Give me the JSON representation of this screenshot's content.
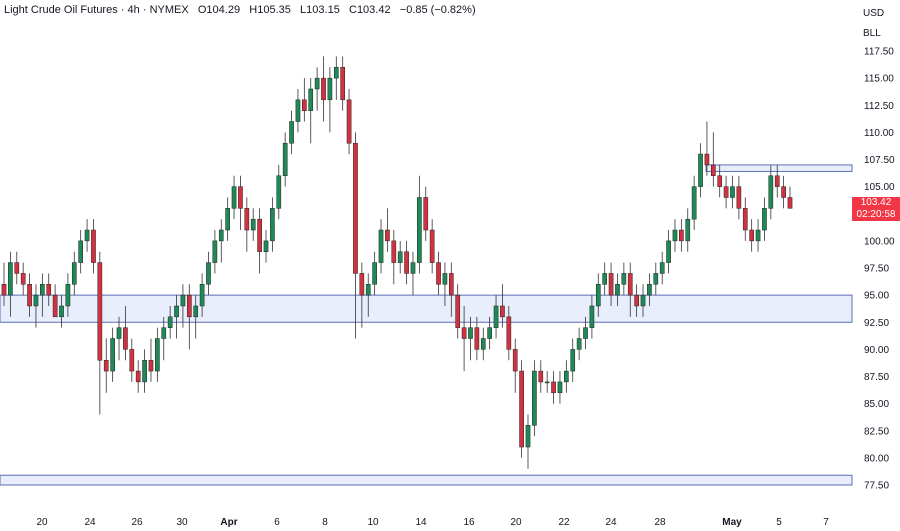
{
  "header": {
    "symbol": "Light Crude Oil Futures",
    "interval": "4h",
    "exchange": "NYMEX",
    "open": "O104.29",
    "high": "H105.35",
    "low": "L103.15",
    "close": "C103.42",
    "change": "−0.85 (−0.82%)"
  },
  "axis": {
    "currency": "USD",
    "unit": "BLL"
  },
  "last_price": {
    "value": "103.42",
    "countdown": "02:20:58"
  },
  "colors": {
    "up": "#26a69a",
    "down": "#ef5350",
    "zone_fill": "#e8eefc",
    "zone_line": "#5a6fb5",
    "up_body": "#1e8a57",
    "down_body": "#d2323f"
  },
  "chart_data": {
    "type": "candlestick",
    "ylim": [
      76.5,
      118.5
    ],
    "y_ticks": [
      "117.50",
      "115.00",
      "112.50",
      "110.00",
      "107.50",
      "105.00",
      "102.50",
      "100.00",
      "97.50",
      "95.00",
      "92.50",
      "90.00",
      "87.50",
      "85.00",
      "82.50",
      "80.00",
      "77.50"
    ],
    "x_ticks": [
      {
        "label": "20",
        "bold": false
      },
      {
        "label": "24",
        "bold": false
      },
      {
        "label": "26",
        "bold": false
      },
      {
        "label": "30",
        "bold": false
      },
      {
        "label": "Apr",
        "bold": true
      },
      {
        "label": "6",
        "bold": false
      },
      {
        "label": "8",
        "bold": false
      },
      {
        "label": "10",
        "bold": false
      },
      {
        "label": "14",
        "bold": false
      },
      {
        "label": "16",
        "bold": false
      },
      {
        "label": "20",
        "bold": false
      },
      {
        "label": "22",
        "bold": false
      },
      {
        "label": "24",
        "bold": false
      },
      {
        "label": "28",
        "bold": false
      },
      {
        "label": "May",
        "bold": true
      },
      {
        "label": "5",
        "bold": false
      },
      {
        "label": "7",
        "bold": false
      }
    ],
    "zones": [
      {
        "from": 92.5,
        "to": 95.0
      },
      {
        "from": 77.5,
        "to": 78.4
      },
      {
        "from": 106.4,
        "to": 107.0
      }
    ],
    "candles": [
      [
        96,
        98,
        94,
        95
      ],
      [
        95,
        99,
        93,
        98
      ],
      [
        98,
        99,
        96,
        97
      ],
      [
        97,
        98,
        95,
        96
      ],
      [
        96,
        97,
        93,
        94
      ],
      [
        94,
        96,
        92,
        95
      ],
      [
        95,
        97,
        93,
        96
      ],
      [
        96,
        97,
        94,
        95
      ],
      [
        95,
        96,
        93,
        93
      ],
      [
        93,
        95,
        92,
        94
      ],
      [
        94,
        97,
        93,
        96
      ],
      [
        96,
        99,
        95,
        98
      ],
      [
        98,
        101,
        97,
        100
      ],
      [
        100,
        102,
        99,
        101
      ],
      [
        101,
        102,
        97,
        98
      ],
      [
        98,
        99,
        84,
        89
      ],
      [
        89,
        91,
        86,
        88
      ],
      [
        88,
        92,
        87,
        91
      ],
      [
        91,
        93,
        89,
        92
      ],
      [
        92,
        94,
        89,
        90
      ],
      [
        90,
        91,
        87,
        88
      ],
      [
        88,
        89,
        86,
        87
      ],
      [
        87,
        90,
        86,
        89
      ],
      [
        89,
        91,
        87,
        88
      ],
      [
        88,
        92,
        87,
        91
      ],
      [
        91,
        93,
        89,
        92
      ],
      [
        92,
        94,
        91,
        93
      ],
      [
        93,
        95,
        91,
        94
      ],
      [
        94,
        96,
        92,
        95
      ],
      [
        95,
        96,
        90,
        93
      ],
      [
        93,
        95,
        91,
        94
      ],
      [
        94,
        97,
        93,
        96
      ],
      [
        96,
        99,
        95,
        98
      ],
      [
        98,
        101,
        97,
        100
      ],
      [
        100,
        102,
        98,
        101
      ],
      [
        101,
        104,
        100,
        103
      ],
      [
        103,
        106,
        102,
        105
      ],
      [
        105,
        106,
        101,
        103
      ],
      [
        103,
        104,
        99,
        101
      ],
      [
        101,
        103,
        100,
        102
      ],
      [
        102,
        103,
        97,
        99
      ],
      [
        99,
        101,
        98,
        100
      ],
      [
        100,
        104,
        99,
        103
      ],
      [
        103,
        107,
        102,
        106
      ],
      [
        106,
        110,
        105,
        109
      ],
      [
        109,
        112,
        108,
        111
      ],
      [
        111,
        114,
        110,
        113
      ],
      [
        113,
        115,
        111,
        112
      ],
      [
        112,
        115,
        109,
        114
      ],
      [
        114,
        116,
        112,
        115
      ],
      [
        115,
        117,
        111,
        113
      ],
      [
        113,
        116,
        110,
        115
      ],
      [
        115,
        117,
        113,
        116
      ],
      [
        116,
        117,
        112,
        113
      ],
      [
        113,
        114,
        108,
        109
      ],
      [
        109,
        110,
        91,
        97
      ],
      [
        97,
        98,
        92,
        95
      ],
      [
        95,
        97,
        93,
        96
      ],
      [
        96,
        99,
        95,
        98
      ],
      [
        98,
        102,
        97,
        101
      ],
      [
        101,
        103,
        99,
        100
      ],
      [
        100,
        101,
        96,
        98
      ],
      [
        98,
        100,
        97,
        99
      ],
      [
        99,
        100,
        96,
        97
      ],
      [
        97,
        99,
        95,
        98
      ],
      [
        98,
        106,
        97,
        104
      ],
      [
        104,
        105,
        100,
        101
      ],
      [
        101,
        102,
        97,
        98
      ],
      [
        98,
        99,
        95,
        96
      ],
      [
        96,
        98,
        94,
        97
      ],
      [
        97,
        98,
        93,
        95
      ],
      [
        95,
        96,
        91,
        92
      ],
      [
        92,
        94,
        88,
        91
      ],
      [
        91,
        93,
        89,
        92
      ],
      [
        92,
        93,
        89,
        90
      ],
      [
        90,
        92,
        89,
        91
      ],
      [
        91,
        93,
        90,
        92
      ],
      [
        92,
        95,
        91,
        94
      ],
      [
        94,
        96,
        92,
        93
      ],
      [
        93,
        94,
        89,
        90
      ],
      [
        90,
        91,
        86,
        88
      ],
      [
        88,
        89,
        80,
        81
      ],
      [
        81,
        84,
        79,
        83
      ],
      [
        83,
        89,
        82,
        88
      ],
      [
        88,
        89,
        86,
        87
      ],
      [
        87,
        88,
        86,
        87
      ],
      [
        87,
        88,
        85,
        86
      ],
      [
        86,
        88,
        85,
        87
      ],
      [
        87,
        89,
        86,
        88
      ],
      [
        88,
        91,
        87,
        90
      ],
      [
        90,
        92,
        89,
        91
      ],
      [
        91,
        93,
        90,
        92
      ],
      [
        92,
        95,
        91,
        94
      ],
      [
        94,
        97,
        93,
        96
      ],
      [
        96,
        98,
        95,
        97
      ],
      [
        97,
        98,
        94,
        95
      ],
      [
        95,
        97,
        94,
        96
      ],
      [
        96,
        98,
        95,
        97
      ],
      [
        97,
        98,
        93,
        95
      ],
      [
        95,
        96,
        93,
        94
      ],
      [
        94,
        96,
        93,
        95
      ],
      [
        95,
        97,
        94,
        96
      ],
      [
        96,
        98,
        95,
        97
      ],
      [
        97,
        99,
        96,
        98
      ],
      [
        98,
        101,
        97,
        100
      ],
      [
        100,
        102,
        99,
        101
      ],
      [
        101,
        102,
        99,
        100
      ],
      [
        100,
        103,
        99,
        102
      ],
      [
        102,
        106,
        101,
        105
      ],
      [
        105,
        109,
        104,
        108
      ],
      [
        108,
        111,
        106,
        107
      ],
      [
        107,
        110,
        105,
        106
      ],
      [
        106,
        107,
        104,
        105
      ],
      [
        105,
        106,
        103,
        104
      ],
      [
        104,
        106,
        103,
        105
      ],
      [
        105,
        106,
        102,
        103
      ],
      [
        103,
        104,
        100,
        101
      ],
      [
        101,
        102,
        99,
        100
      ],
      [
        100,
        102,
        99,
        101
      ],
      [
        101,
        104,
        100,
        103
      ],
      [
        103,
        107,
        102,
        106
      ],
      [
        106,
        107,
        104,
        105
      ],
      [
        105,
        106,
        103,
        104
      ],
      [
        104,
        105,
        103,
        103
      ]
    ]
  }
}
